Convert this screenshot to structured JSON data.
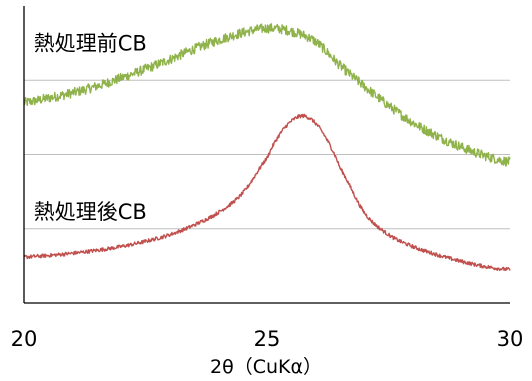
{
  "chart_data": {
    "type": "line",
    "xlabel": "2θ（CuKα）",
    "ylabel": "",
    "xlim": [
      20,
      30
    ],
    "x_ticks": [
      {
        "value": 20,
        "label": "20"
      },
      {
        "value": 25,
        "label": "25"
      },
      {
        "value": 30,
        "label": "30"
      }
    ],
    "ylim": [
      0,
      4
    ],
    "y_gridlines": [
      1,
      2,
      3
    ],
    "grid": true,
    "legend": "none",
    "colors": {
      "before": "#8fb24a",
      "after": "#c0504d",
      "grid": "#bfbfbf",
      "axis": "#000000"
    },
    "series": [
      {
        "name": "熱処理前CB",
        "color": "#8fb24a",
        "label_anchor": {
          "x": 20.2,
          "y": 3.4
        },
        "x": [
          20.0,
          20.5,
          21.0,
          21.5,
          22.0,
          22.5,
          23.0,
          23.5,
          24.0,
          24.5,
          25.0,
          25.5,
          26.0,
          26.5,
          27.0,
          27.5,
          28.0,
          28.5,
          29.0,
          29.5,
          30.0
        ],
        "values": [
          2.7,
          2.76,
          2.83,
          2.92,
          3.03,
          3.15,
          3.28,
          3.42,
          3.54,
          3.64,
          3.7,
          3.66,
          3.52,
          3.2,
          2.92,
          2.66,
          2.43,
          2.25,
          2.1,
          1.98,
          1.9
        ]
      },
      {
        "name": "熱処理後CB",
        "color": "#c0504d",
        "label_anchor": {
          "x": 20.2,
          "y": 1.13
        },
        "x": [
          20.0,
          20.5,
          21.0,
          21.5,
          22.0,
          22.5,
          23.0,
          23.5,
          24.0,
          24.5,
          25.0,
          25.25,
          25.5,
          25.75,
          26.0,
          26.25,
          26.5,
          27.0,
          27.5,
          28.0,
          28.5,
          29.0,
          29.5,
          30.0
        ],
        "values": [
          0.62,
          0.64,
          0.67,
          0.71,
          0.76,
          0.83,
          0.92,
          1.05,
          1.22,
          1.48,
          1.95,
          2.26,
          2.45,
          2.52,
          2.42,
          2.18,
          1.82,
          1.22,
          0.92,
          0.76,
          0.65,
          0.56,
          0.49,
          0.45
        ]
      }
    ]
  }
}
